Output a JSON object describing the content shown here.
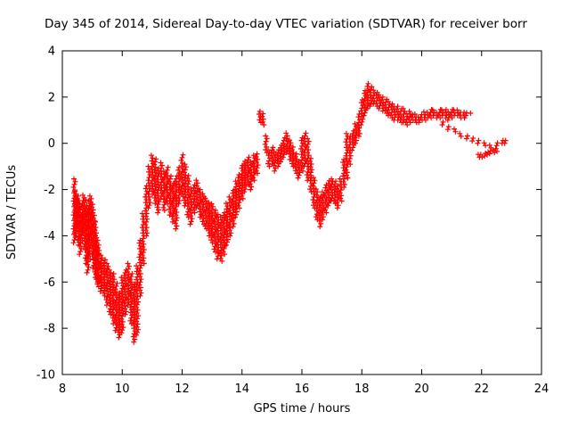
{
  "chart_data": {
    "type": "scatter",
    "title": "Day 345 of 2014, Sidereal Day-to-day VTEC variation (SDTVAR) for receiver borr",
    "xlabel": "GPS time / hours",
    "ylabel": "SDTVAR / TECUs",
    "xlim": [
      8,
      24
    ],
    "ylim": [
      -10,
      4
    ],
    "xticks": [
      8,
      10,
      12,
      14,
      16,
      18,
      20,
      22,
      24
    ],
    "yticks": [
      -10,
      -8,
      -6,
      -4,
      -2,
      0,
      2,
      4
    ],
    "grid": false,
    "legend": "none",
    "marker": "plus",
    "marker_color": "#ff0000",
    "axis_color": "#000000",
    "point_format": [
      "x_hours",
      "y_max_tecu",
      "y_min_tecu"
    ],
    "points": [
      [
        8.4,
        -1.5,
        -4.3
      ],
      [
        8.45,
        -2,
        -4
      ],
      [
        8.5,
        -2.2,
        -3.6
      ],
      [
        8.55,
        -2.4,
        -4.4
      ],
      [
        8.6,
        -2.6,
        -4.8
      ],
      [
        8.65,
        -3,
        -4.2
      ],
      [
        8.7,
        -2.2,
        -3.8
      ],
      [
        8.75,
        -2.4,
        -4.6
      ],
      [
        8.8,
        -2.6,
        -5.2
      ],
      [
        8.85,
        -3,
        -5.6
      ],
      [
        8.9,
        -2.4,
        -5
      ],
      [
        8.95,
        -2.2,
        -4.2
      ],
      [
        9,
        -2.6,
        -4.8
      ],
      [
        9.05,
        -3,
        -5.4
      ],
      [
        9.1,
        -3.4,
        -5.8
      ],
      [
        9.15,
        -4,
        -6
      ],
      [
        9.2,
        -4.4,
        -6.2
      ],
      [
        9.3,
        -4.8,
        -6.4
      ],
      [
        9.4,
        -5,
        -6.6
      ],
      [
        9.5,
        -5.2,
        -7
      ],
      [
        9.6,
        -5.4,
        -7.4
      ],
      [
        9.7,
        -5.6,
        -7.8
      ],
      [
        9.8,
        -6,
        -8.1
      ],
      [
        9.9,
        -6.4,
        -8.4
      ],
      [
        10,
        -5.8,
        -8.2
      ],
      [
        10.1,
        -5.4,
        -7.4
      ],
      [
        10.2,
        -5.2,
        -7
      ],
      [
        10.3,
        -5.6,
        -7.8
      ],
      [
        10.4,
        -6,
        -8.6
      ],
      [
        10.5,
        -5.2,
        -8.3
      ],
      [
        10.6,
        -4.2,
        -6.6
      ],
      [
        10.7,
        -3,
        -5.2
      ],
      [
        10.8,
        -1.8,
        -4
      ],
      [
        10.9,
        -1,
        -2.8
      ],
      [
        11,
        -0.5,
        -2.2
      ],
      [
        11.1,
        -0.6,
        -2.6
      ],
      [
        11.2,
        -1,
        -3
      ],
      [
        11.3,
        -0.8,
        -2.4
      ],
      [
        11.4,
        -1.2,
        -2.9
      ],
      [
        11.5,
        -1,
        -2.6
      ],
      [
        11.6,
        -1.4,
        -3.1
      ],
      [
        11.7,
        -1.7,
        -3.4
      ],
      [
        11.8,
        -1.4,
        -3.7
      ],
      [
        11.9,
        -1,
        -2.6
      ],
      [
        12,
        -0.5,
        -2.3
      ],
      [
        12.1,
        -0.9,
        -2.7
      ],
      [
        12.2,
        -1.4,
        -3.2
      ],
      [
        12.3,
        -1.9,
        -3.5
      ],
      [
        12.4,
        -1.7,
        -3
      ],
      [
        12.5,
        -1.5,
        -2.8
      ],
      [
        12.6,
        -1.9,
        -3.2
      ],
      [
        12.7,
        -2.1,
        -3.5
      ],
      [
        12.8,
        -2.3,
        -3.7
      ],
      [
        12.9,
        -2.5,
        -4
      ],
      [
        13,
        -2.6,
        -4.3
      ],
      [
        13.1,
        -2.8,
        -4.7
      ],
      [
        13.2,
        -3,
        -5
      ],
      [
        13.3,
        -3.1,
        -5.1
      ],
      [
        13.4,
        -2.9,
        -4.8
      ],
      [
        13.5,
        -2.6,
        -4.4
      ],
      [
        13.6,
        -2.3,
        -4
      ],
      [
        13.7,
        -2,
        -3.6
      ],
      [
        13.8,
        -1.6,
        -3.2
      ],
      [
        13.9,
        -1.3,
        -2.8
      ],
      [
        14,
        -0.9,
        -2.4
      ],
      [
        14.1,
        -0.7,
        -2.1
      ],
      [
        14.2,
        -0.5,
        -1.8
      ],
      [
        14.3,
        -0.7,
        -2
      ],
      [
        14.4,
        -0.5,
        -1.6
      ],
      [
        14.5,
        -0.4,
        -1.3
      ],
      [
        14.6,
        1.4,
        0.9
      ],
      [
        14.7,
        1.3,
        0.8
      ],
      [
        14.8,
        0.4,
        -0.4
      ],
      [
        14.9,
        -0.2,
        -1
      ],
      [
        15,
        -0.1,
        -0.9
      ],
      [
        15.1,
        -0.3,
        -1.2
      ],
      [
        15.2,
        -0.2,
        -1
      ],
      [
        15.3,
        0,
        -0.8
      ],
      [
        15.4,
        0.3,
        -0.6
      ],
      [
        15.5,
        0.5,
        -0.4
      ],
      [
        15.6,
        0.2,
        -0.7
      ],
      [
        15.7,
        -0.1,
        -1
      ],
      [
        15.8,
        -0.4,
        -1.3
      ],
      [
        15.9,
        -0.7,
        -1.5
      ],
      [
        16,
        0.3,
        -1.2
      ],
      [
        16.1,
        0.5,
        -1
      ],
      [
        16.2,
        0.2,
        -1.6
      ],
      [
        16.3,
        -0.6,
        -2.1
      ],
      [
        16.4,
        -1.4,
        -2.8
      ],
      [
        16.5,
        -1.9,
        -3.3
      ],
      [
        16.6,
        -2.2,
        -3.6
      ],
      [
        16.7,
        -2,
        -3.3
      ],
      [
        16.8,
        -1.8,
        -3
      ],
      [
        16.9,
        -1.6,
        -2.7
      ],
      [
        17,
        -1.5,
        -2.5
      ],
      [
        17.1,
        -1.6,
        -2.6
      ],
      [
        17.2,
        -1.8,
        -2.8
      ],
      [
        17.3,
        -1.5,
        -2.5
      ],
      [
        17.4,
        -0.6,
        -1.9
      ],
      [
        17.5,
        0.5,
        -1.5
      ],
      [
        17.6,
        0.3,
        -0.9
      ],
      [
        17.7,
        0.6,
        -0.3
      ],
      [
        17.8,
        0.9,
        0
      ],
      [
        17.9,
        1.3,
        0.3
      ],
      [
        18,
        1.9,
        0.8
      ],
      [
        18.1,
        2.3,
        1.2
      ],
      [
        18.2,
        2.6,
        1.5
      ],
      [
        18.3,
        2.5,
        1.6
      ],
      [
        18.4,
        2.4,
        1.7
      ],
      [
        18.5,
        2.3,
        1.6
      ],
      [
        18.6,
        2.2,
        1.5
      ],
      [
        18.7,
        2.1,
        1.4
      ],
      [
        18.8,
        2,
        1.3
      ],
      [
        18.9,
        1.9,
        1.2
      ],
      [
        19,
        1.8,
        1.1
      ],
      [
        19.1,
        1.7,
        1
      ],
      [
        19.2,
        1.6,
        1
      ],
      [
        19.3,
        1.5,
        0.9
      ],
      [
        19.4,
        1.5,
        0.9
      ],
      [
        19.5,
        1.3,
        0.8
      ],
      [
        19.6,
        1.4,
        0.9
      ],
      [
        19.7,
        1.3,
        1
      ],
      [
        19.8,
        1.3,
        0.9
      ],
      [
        19.9,
        1.2,
        0.9
      ],
      [
        20,
        1.3,
        1
      ],
      [
        20.1,
        1.4,
        1
      ],
      [
        20.2,
        1.4,
        1.1
      ],
      [
        20.3,
        1.5,
        1.1
      ],
      [
        20.4,
        1.5,
        1.2
      ],
      [
        20.5,
        1.4,
        1.1
      ],
      [
        20.6,
        1.5,
        1.1
      ],
      [
        20.7,
        1.5,
        1.2
      ],
      [
        20.8,
        1.5,
        1.1
      ],
      [
        20.9,
        1.4,
        1
      ],
      [
        21,
        1.5,
        1.1
      ],
      [
        21.1,
        1.5,
        1.2
      ],
      [
        21.2,
        1.5,
        1.2
      ],
      [
        21.3,
        1.4,
        1.1
      ],
      [
        21.4,
        1.4,
        1.1
      ],
      [
        21.5,
        1.4,
        1.2
      ],
      [
        21.6,
        1.4,
        1.3
      ],
      [
        20.7,
        1,
        0.8
      ],
      [
        20.9,
        0.8,
        0.6
      ],
      [
        21.1,
        0.7,
        0.5
      ],
      [
        21.3,
        0.5,
        0.3
      ],
      [
        21.5,
        0.4,
        0.2
      ],
      [
        21.7,
        0.3,
        0.1
      ],
      [
        21.9,
        0.2,
        0
      ],
      [
        22.1,
        0.1,
        -0.1
      ],
      [
        22.3,
        0,
        -0.2
      ],
      [
        22.5,
        0.1,
        -0.1
      ],
      [
        22.7,
        0.2,
        0
      ],
      [
        22.8,
        0.2,
        0
      ],
      [
        21.9,
        -0.4,
        -0.6
      ],
      [
        22,
        -0.45,
        -0.6
      ],
      [
        22.1,
        -0.4,
        -0.55
      ],
      [
        22.2,
        -0.35,
        -0.5
      ],
      [
        22.3,
        -0.3,
        -0.45
      ],
      [
        22.4,
        -0.25,
        -0.4
      ],
      [
        22.5,
        -0.2,
        -0.35
      ]
    ]
  }
}
